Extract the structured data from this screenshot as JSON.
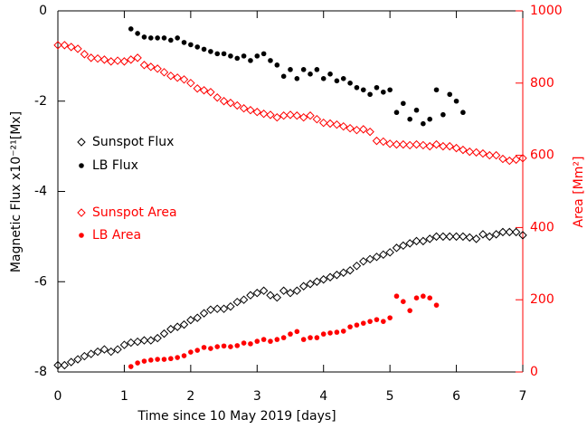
{
  "chart_data": {
    "type": "scatter",
    "xlabel": "Time since 10 May 2019 [days]",
    "ylabel": "Magnetic Flux x10⁻²¹[Mx]",
    "y2label": "Area [Mm²]",
    "xlim": [
      0,
      7
    ],
    "xticks": [
      0,
      1,
      2,
      3,
      4,
      5,
      6,
      7
    ],
    "ylim": [
      -8,
      0
    ],
    "yticks": [
      -8,
      -6,
      -4,
      -2,
      0
    ],
    "y2lim": [
      0,
      1000
    ],
    "y2ticks": [
      0,
      200,
      400,
      600,
      800,
      1000
    ],
    "y2color": "#ff0000",
    "series": [
      {
        "name": "Sunspot Flux",
        "color": "#000000",
        "marker": "diamond",
        "x": [
          0,
          0.1,
          0.2,
          0.3,
          0.4,
          0.5,
          0.6,
          0.7,
          0.8,
          0.9,
          1,
          1.1,
          1.2,
          1.3,
          1.4,
          1.5,
          1.6,
          1.7,
          1.8,
          1.9,
          2,
          2.1,
          2.2,
          2.3,
          2.4,
          2.5,
          2.6,
          2.7,
          2.8,
          2.9,
          3,
          3.1,
          3.2,
          3.3,
          3.4,
          3.5,
          3.6,
          3.7,
          3.8,
          3.9,
          4,
          4.1,
          4.2,
          4.3,
          4.4,
          4.5,
          4.6,
          4.7,
          4.8,
          4.9,
          5,
          5.1,
          5.2,
          5.3,
          5.4,
          5.5,
          5.6,
          5.7,
          5.8,
          5.9,
          6,
          6.1,
          6.2,
          6.3,
          6.4,
          6.5,
          6.6,
          6.7,
          6.8,
          6.9,
          7
        ],
        "values": [
          -7.85,
          -7.85,
          -7.78,
          -7.72,
          -7.65,
          -7.6,
          -7.55,
          -7.5,
          -7.55,
          -7.5,
          -7.4,
          -7.35,
          -7.33,
          -7.3,
          -7.3,
          -7.25,
          -7.15,
          -7.05,
          -7.0,
          -6.95,
          -6.85,
          -6.8,
          -6.7,
          -6.62,
          -6.6,
          -6.6,
          -6.55,
          -6.45,
          -6.4,
          -6.3,
          -6.25,
          -6.2,
          -6.3,
          -6.35,
          -6.2,
          -6.25,
          -6.2,
          -6.1,
          -6.05,
          -6.0,
          -5.95,
          -5.9,
          -5.85,
          -5.8,
          -5.75,
          -5.65,
          -5.55,
          -5.5,
          -5.45,
          -5.4,
          -5.35,
          -5.25,
          -5.2,
          -5.15,
          -5.1,
          -5.1,
          -5.05,
          -5.0,
          -5.0,
          -5.0,
          -5.0,
          -5.0,
          -5.02,
          -5.05,
          -4.95,
          -5.0,
          -4.95,
          -4.9,
          -4.9,
          -4.9,
          -4.97
        ]
      },
      {
        "name": "LB Flux",
        "color": "#000000",
        "marker": "circle",
        "x": [
          1.1,
          1.2,
          1.3,
          1.4,
          1.5,
          1.6,
          1.7,
          1.8,
          1.9,
          2,
          2.1,
          2.2,
          2.3,
          2.4,
          2.5,
          2.6,
          2.7,
          2.8,
          2.9,
          3,
          3.1,
          3.2,
          3.3,
          3.4,
          3.5,
          3.6,
          3.7,
          3.8,
          3.9,
          4,
          4.1,
          4.2,
          4.3,
          4.4,
          4.5,
          4.6,
          4.7,
          4.8,
          4.9,
          5,
          5.1,
          5.2,
          5.3,
          5.4,
          5.5,
          5.6,
          5.7,
          5.8,
          5.9,
          6,
          6.1
        ],
        "values": [
          -0.4,
          -0.5,
          -0.58,
          -0.6,
          -0.6,
          -0.6,
          -0.65,
          -0.6,
          -0.7,
          -0.75,
          -0.8,
          -0.85,
          -0.9,
          -0.95,
          -0.95,
          -1.0,
          -1.05,
          -1.0,
          -1.1,
          -1.0,
          -0.95,
          -1.1,
          -1.2,
          -1.45,
          -1.3,
          -1.5,
          -1.3,
          -1.4,
          -1.3,
          -1.5,
          -1.4,
          -1.55,
          -1.5,
          -1.6,
          -1.7,
          -1.75,
          -1.85,
          -1.7,
          -1.8,
          -1.75,
          -2.25,
          -2.05,
          -2.4,
          -2.2,
          -2.5,
          -2.4,
          -1.75,
          -2.3,
          -1.85,
          -2.0,
          -2.25
        ]
      },
      {
        "name": "Sunspot Area",
        "color": "#ff0000",
        "marker": "diamond",
        "axis": "y2",
        "x": [
          0,
          0.1,
          0.2,
          0.3,
          0.4,
          0.5,
          0.6,
          0.7,
          0.8,
          0.9,
          1,
          1.1,
          1.2,
          1.3,
          1.4,
          1.5,
          1.6,
          1.7,
          1.8,
          1.9,
          2,
          2.1,
          2.2,
          2.3,
          2.4,
          2.5,
          2.6,
          2.7,
          2.8,
          2.9,
          3,
          3.1,
          3.2,
          3.3,
          3.4,
          3.5,
          3.6,
          3.7,
          3.8,
          3.9,
          4,
          4.1,
          4.2,
          4.3,
          4.4,
          4.5,
          4.6,
          4.7,
          4.8,
          4.9,
          5,
          5.1,
          5.2,
          5.3,
          5.4,
          5.5,
          5.6,
          5.7,
          5.8,
          5.9,
          6,
          6.1,
          6.2,
          6.3,
          6.4,
          6.5,
          6.6,
          6.7,
          6.8,
          6.9,
          7
        ],
        "values": [
          905,
          905,
          900,
          895,
          880,
          870,
          868,
          865,
          860,
          862,
          860,
          865,
          870,
          850,
          845,
          840,
          830,
          820,
          815,
          810,
          800,
          785,
          780,
          775,
          760,
          750,
          745,
          738,
          730,
          725,
          720,
          715,
          712,
          705,
          710,
          712,
          710,
          705,
          710,
          700,
          690,
          688,
          685,
          680,
          675,
          670,
          672,
          665,
          640,
          638,
          632,
          630,
          630,
          628,
          630,
          628,
          625,
          630,
          625,
          625,
          620,
          615,
          610,
          608,
          605,
          600,
          600,
          590,
          585,
          588,
          592
        ]
      },
      {
        "name": "LB Area",
        "color": "#ff0000",
        "marker": "circle",
        "axis": "y2",
        "x": [
          1.1,
          1.2,
          1.3,
          1.4,
          1.5,
          1.6,
          1.7,
          1.8,
          1.9,
          2,
          2.1,
          2.2,
          2.3,
          2.4,
          2.5,
          2.6,
          2.7,
          2.8,
          2.9,
          3,
          3.1,
          3.2,
          3.3,
          3.4,
          3.5,
          3.6,
          3.7,
          3.8,
          3.9,
          4,
          4.1,
          4.2,
          4.3,
          4.4,
          4.5,
          4.6,
          4.7,
          4.8,
          4.9,
          5,
          5.1,
          5.2,
          5.3,
          5.4,
          5.5,
          5.6,
          5.7
        ],
        "values": [
          15,
          25,
          30,
          33,
          35,
          35,
          37,
          40,
          45,
          55,
          60,
          68,
          65,
          70,
          72,
          70,
          73,
          80,
          78,
          85,
          90,
          85,
          90,
          95,
          105,
          112,
          90,
          95,
          95,
          105,
          108,
          110,
          113,
          125,
          130,
          135,
          140,
          145,
          140,
          150,
          210,
          195,
          170,
          205,
          210,
          205,
          185
        ]
      }
    ]
  }
}
